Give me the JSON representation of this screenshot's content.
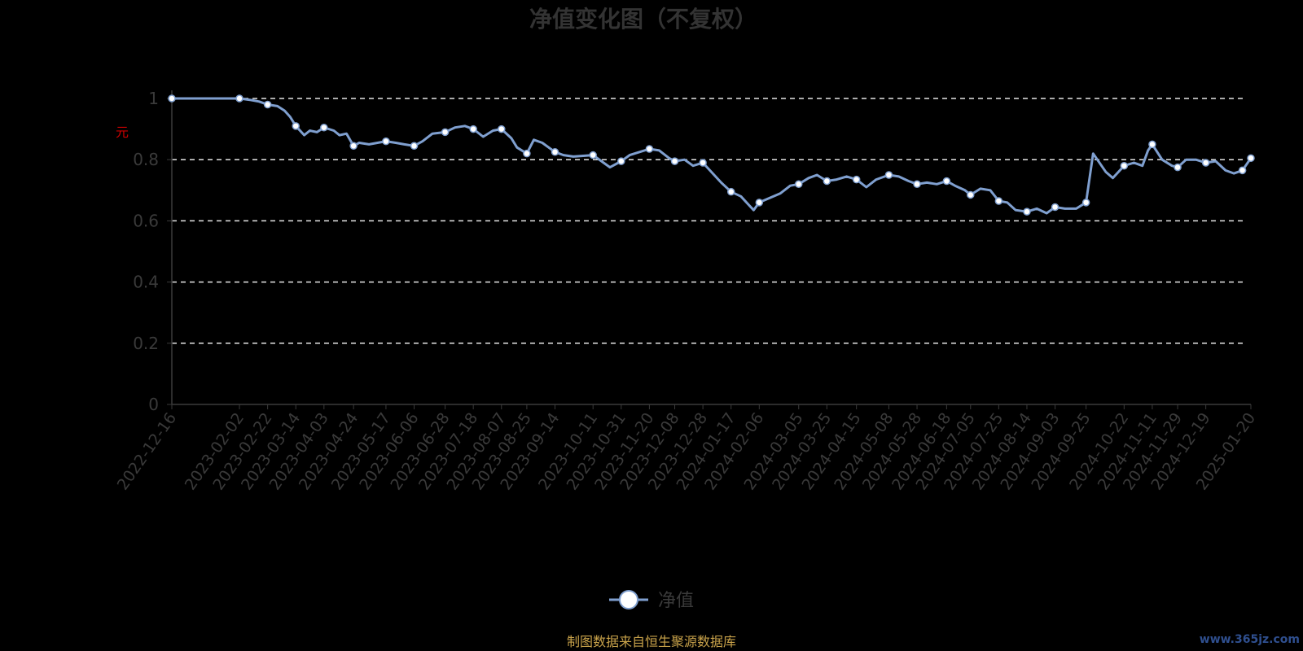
{
  "chart_data": {
    "type": "line",
    "title": "净值变化图（不复权）",
    "ylabel": "",
    "y_unit_mark": "元",
    "ylim": [
      0,
      1
    ],
    "yticks": [
      0,
      0.2,
      0.4,
      0.6,
      0.8,
      1
    ],
    "grid": true,
    "legend_position": "bottom-center",
    "series": [
      {
        "name": "净值",
        "color": "#7f9fcf",
        "points": [
          [
            "2022-12-16",
            1.0
          ],
          [
            "2022-12-30",
            1.0
          ],
          [
            "2023-01-13",
            1.0
          ],
          [
            "2023-02-02",
            1.0
          ],
          [
            "2023-02-10",
            0.995
          ],
          [
            "2023-02-16",
            0.99
          ],
          [
            "2023-02-22",
            0.98
          ],
          [
            "2023-03-01",
            0.975
          ],
          [
            "2023-03-06",
            0.96
          ],
          [
            "2023-03-10",
            0.94
          ],
          [
            "2023-03-14",
            0.91
          ],
          [
            "2023-03-20",
            0.88
          ],
          [
            "2023-03-24",
            0.895
          ],
          [
            "2023-03-29",
            0.89
          ],
          [
            "2023-04-03",
            0.905
          ],
          [
            "2023-04-10",
            0.895
          ],
          [
            "2023-04-14",
            0.88
          ],
          [
            "2023-04-19",
            0.885
          ],
          [
            "2023-04-24",
            0.845
          ],
          [
            "2023-04-28",
            0.855
          ],
          [
            "2023-05-05",
            0.85
          ],
          [
            "2023-05-11",
            0.855
          ],
          [
            "2023-05-17",
            0.86
          ],
          [
            "2023-05-24",
            0.855
          ],
          [
            "2023-05-30",
            0.85
          ],
          [
            "2023-06-06",
            0.845
          ],
          [
            "2023-06-12",
            0.86
          ],
          [
            "2023-06-19",
            0.885
          ],
          [
            "2023-06-28",
            0.89
          ],
          [
            "2023-07-05",
            0.905
          ],
          [
            "2023-07-12",
            0.91
          ],
          [
            "2023-07-18",
            0.9
          ],
          [
            "2023-07-25",
            0.875
          ],
          [
            "2023-08-01",
            0.895
          ],
          [
            "2023-08-07",
            0.9
          ],
          [
            "2023-08-14",
            0.87
          ],
          [
            "2023-08-18",
            0.84
          ],
          [
            "2023-08-25",
            0.82
          ],
          [
            "2023-08-30",
            0.865
          ],
          [
            "2023-09-05",
            0.855
          ],
          [
            "2023-09-14",
            0.825
          ],
          [
            "2023-09-20",
            0.815
          ],
          [
            "2023-09-27",
            0.81
          ],
          [
            "2023-10-11",
            0.815
          ],
          [
            "2023-10-17",
            0.795
          ],
          [
            "2023-10-23",
            0.775
          ],
          [
            "2023-10-31",
            0.795
          ],
          [
            "2023-11-06",
            0.815
          ],
          [
            "2023-11-13",
            0.825
          ],
          [
            "2023-11-20",
            0.835
          ],
          [
            "2023-11-27",
            0.83
          ],
          [
            "2023-12-04",
            0.805
          ],
          [
            "2023-12-08",
            0.795
          ],
          [
            "2023-12-15",
            0.8
          ],
          [
            "2023-12-21",
            0.78
          ],
          [
            "2023-12-28",
            0.79
          ],
          [
            "2024-01-04",
            0.755
          ],
          [
            "2024-01-10",
            0.725
          ],
          [
            "2024-01-17",
            0.695
          ],
          [
            "2024-01-24",
            0.68
          ],
          [
            "2024-01-30",
            0.65
          ],
          [
            "2024-02-02",
            0.635
          ],
          [
            "2024-02-06",
            0.66
          ],
          [
            "2024-02-21",
            0.69
          ],
          [
            "2024-02-28",
            0.715
          ],
          [
            "2024-03-05",
            0.72
          ],
          [
            "2024-03-12",
            0.74
          ],
          [
            "2024-03-18",
            0.75
          ],
          [
            "2024-03-25",
            0.73
          ],
          [
            "2024-04-01",
            0.735
          ],
          [
            "2024-04-08",
            0.745
          ],
          [
            "2024-04-15",
            0.735
          ],
          [
            "2024-04-22",
            0.71
          ],
          [
            "2024-04-29",
            0.735
          ],
          [
            "2024-05-08",
            0.75
          ],
          [
            "2024-05-15",
            0.745
          ],
          [
            "2024-05-22",
            0.73
          ],
          [
            "2024-05-28",
            0.72
          ],
          [
            "2024-06-04",
            0.725
          ],
          [
            "2024-06-11",
            0.72
          ],
          [
            "2024-06-18",
            0.73
          ],
          [
            "2024-06-24",
            0.715
          ],
          [
            "2024-07-01",
            0.7
          ],
          [
            "2024-07-05",
            0.685
          ],
          [
            "2024-07-12",
            0.705
          ],
          [
            "2024-07-19",
            0.7
          ],
          [
            "2024-07-25",
            0.665
          ],
          [
            "2024-07-31",
            0.66
          ],
          [
            "2024-08-06",
            0.635
          ],
          [
            "2024-08-14",
            0.63
          ],
          [
            "2024-08-21",
            0.64
          ],
          [
            "2024-08-28",
            0.625
          ],
          [
            "2024-09-03",
            0.645
          ],
          [
            "2024-09-10",
            0.64
          ],
          [
            "2024-09-18",
            0.64
          ],
          [
            "2024-09-25",
            0.66
          ],
          [
            "2024-09-30",
            0.82
          ],
          [
            "2024-10-09",
            0.76
          ],
          [
            "2024-10-14",
            0.74
          ],
          [
            "2024-10-22",
            0.78
          ],
          [
            "2024-10-29",
            0.79
          ],
          [
            "2024-11-04",
            0.78
          ],
          [
            "2024-11-08",
            0.83
          ],
          [
            "2024-11-11",
            0.85
          ],
          [
            "2024-11-18",
            0.8
          ],
          [
            "2024-11-25",
            0.78
          ],
          [
            "2024-11-29",
            0.775
          ],
          [
            "2024-12-05",
            0.8
          ],
          [
            "2024-12-12",
            0.8
          ],
          [
            "2024-12-19",
            0.79
          ],
          [
            "2024-12-26",
            0.795
          ],
          [
            "2025-01-02",
            0.765
          ],
          [
            "2025-01-08",
            0.755
          ],
          [
            "2025-01-14",
            0.765
          ],
          [
            "2025-01-20",
            0.805
          ]
        ],
        "marker_dates": [
          "2022-12-16",
          "2023-02-02",
          "2023-02-22",
          "2023-03-14",
          "2023-04-03",
          "2023-04-24",
          "2023-05-17",
          "2023-06-06",
          "2023-06-28",
          "2023-07-18",
          "2023-08-07",
          "2023-08-25",
          "2023-09-14",
          "2023-10-11",
          "2023-10-31",
          "2023-11-20",
          "2023-12-08",
          "2023-12-28",
          "2024-01-17",
          "2024-02-06",
          "2024-03-05",
          "2024-03-25",
          "2024-04-15",
          "2024-05-08",
          "2024-05-28",
          "2024-06-18",
          "2024-07-05",
          "2024-07-25",
          "2024-08-14",
          "2024-09-03",
          "2024-09-25",
          "2024-10-22",
          "2024-11-11",
          "2024-11-29",
          "2024-12-19",
          "2025-01-14",
          "2025-01-20"
        ]
      }
    ],
    "x_tick_labels": [
      "2022-12-16",
      "2023-02-02",
      "2023-02-22",
      "2023-03-14",
      "2023-04-03",
      "2023-04-24",
      "2023-05-17",
      "2023-06-06",
      "2023-06-28",
      "2023-07-18",
      "2023-08-07",
      "2023-08-25",
      "2023-09-14",
      "2023-10-11",
      "2023-10-31",
      "2023-11-20",
      "2023-12-08",
      "2023-12-28",
      "2024-01-17",
      "2024-02-06",
      "2024-03-05",
      "2024-03-25",
      "2024-04-15",
      "2024-05-08",
      "2024-05-28",
      "2024-06-18",
      "2024-07-05",
      "2024-07-25",
      "2024-08-14",
      "2024-09-03",
      "2024-09-25",
      "2024-10-22",
      "2024-11-11",
      "2024-11-29",
      "2024-12-19",
      "2025-01-20"
    ]
  },
  "footer": {
    "source_text": "制图数据来自恒生聚源数据库",
    "watermark": "www.365jz.com"
  }
}
